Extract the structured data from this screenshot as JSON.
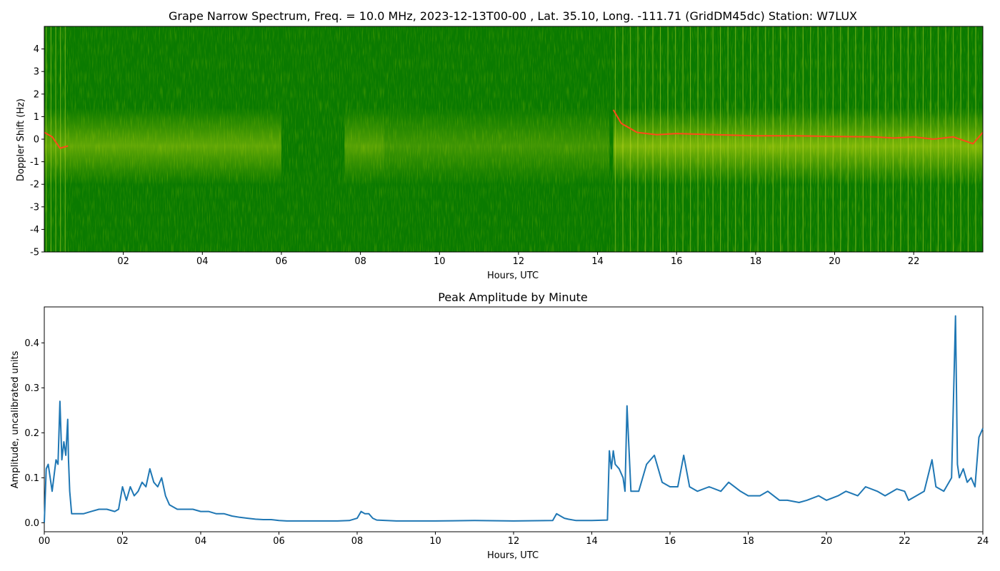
{
  "chart_data": [
    {
      "type": "heatmap",
      "title": "Grape Narrow Spectrum, Freq. = 10.0 MHz, 2023-12-13T00-00 , Lat.  35.10, Long. -111.71 (GridDM45dc) Station: W7LUX",
      "xlabel": "Hours, UTC",
      "ylabel": "Doppler Shift (Hz)",
      "xlim": [
        0,
        23.75
      ],
      "ylim": [
        -5,
        5
      ],
      "xticks": [
        "02",
        "04",
        "06",
        "08",
        "10",
        "12",
        "14",
        "16",
        "18",
        "20",
        "22"
      ],
      "xtick_values": [
        2,
        4,
        6,
        8,
        10,
        12,
        14,
        16,
        18,
        20,
        22
      ],
      "yticks": [
        "-5",
        "-4",
        "-3",
        "-2",
        "-1",
        "0",
        "1",
        "2",
        "3",
        "4"
      ],
      "ytick_values": [
        -5,
        -4,
        -3,
        -2,
        -1,
        0,
        1,
        2,
        3,
        4
      ],
      "colors": {
        "background": "#0a7a00",
        "mid": "#dde600",
        "high": "#ff4a1a"
      },
      "trace": {
        "x": [
          0,
          0.2,
          0.4,
          0.6,
          14.4,
          14.6,
          15.0,
          15.5,
          16.0,
          17.0,
          18.0,
          19.0,
          20.0,
          21.0,
          21.5,
          22.0,
          22.5,
          23.0,
          23.5,
          23.75
        ],
        "y": [
          0.3,
          0.1,
          -0.4,
          -0.3,
          1.3,
          0.7,
          0.3,
          0.2,
          0.25,
          0.2,
          0.15,
          0.15,
          0.12,
          0.1,
          0.05,
          0.1,
          0.0,
          0.1,
          -0.2,
          0.3
        ]
      }
    },
    {
      "type": "line",
      "title": "Peak Amplitude by Minute",
      "xlabel": "Hours, UTC",
      "ylabel": "Amplitude, uncalibrated units",
      "xlim": [
        0,
        24
      ],
      "ylim": [
        -0.02,
        0.48
      ],
      "xticks": [
        "00",
        "02",
        "04",
        "06",
        "08",
        "10",
        "12",
        "14",
        "16",
        "18",
        "20",
        "22",
        "24"
      ],
      "xtick_values": [
        0,
        2,
        4,
        6,
        8,
        10,
        12,
        14,
        16,
        18,
        20,
        22,
        24
      ],
      "yticks": [
        "0.0",
        "0.1",
        "0.2",
        "0.3",
        "0.4"
      ],
      "ytick_values": [
        0,
        0.1,
        0.2,
        0.3,
        0.4
      ],
      "line_color": "#1f77b4",
      "x": [
        0,
        0.05,
        0.1,
        0.2,
        0.3,
        0.35,
        0.4,
        0.45,
        0.5,
        0.55,
        0.6,
        0.62,
        0.65,
        0.7,
        0.8,
        1.0,
        1.2,
        1.4,
        1.6,
        1.8,
        1.9,
        2.0,
        2.1,
        2.2,
        2.3,
        2.4,
        2.5,
        2.6,
        2.7,
        2.8,
        2.9,
        3.0,
        3.1,
        3.2,
        3.4,
        3.6,
        3.8,
        4.0,
        4.2,
        4.4,
        4.6,
        4.8,
        5.0,
        5.2,
        5.4,
        5.6,
        5.8,
        6.0,
        6.2,
        6.5,
        7.0,
        7.5,
        7.8,
        8.0,
        8.1,
        8.2,
        8.3,
        8.4,
        8.5,
        9.0,
        10.0,
        11.0,
        12.0,
        13.0,
        13.1,
        13.2,
        13.3,
        13.4,
        13.6,
        14.0,
        14.4,
        14.45,
        14.5,
        14.55,
        14.6,
        14.7,
        14.8,
        14.85,
        14.9,
        15.0,
        15.2,
        15.4,
        15.6,
        15.8,
        16.0,
        16.2,
        16.35,
        16.5,
        16.7,
        17.0,
        17.3,
        17.5,
        17.8,
        18.0,
        18.3,
        18.5,
        18.8,
        19.0,
        19.3,
        19.5,
        19.8,
        20.0,
        20.3,
        20.5,
        20.8,
        21.0,
        21.3,
        21.5,
        21.8,
        22.0,
        22.1,
        22.3,
        22.5,
        22.7,
        22.8,
        23.0,
        23.2,
        23.3,
        23.35,
        23.4,
        23.5,
        23.6,
        23.7,
        23.8,
        23.9,
        24.0
      ],
      "values": [
        0.0,
        0.12,
        0.13,
        0.07,
        0.14,
        0.13,
        0.27,
        0.14,
        0.18,
        0.15,
        0.23,
        0.14,
        0.07,
        0.02,
        0.02,
        0.02,
        0.025,
        0.03,
        0.03,
        0.025,
        0.03,
        0.08,
        0.05,
        0.08,
        0.06,
        0.07,
        0.09,
        0.08,
        0.12,
        0.09,
        0.08,
        0.1,
        0.06,
        0.04,
        0.03,
        0.03,
        0.03,
        0.025,
        0.025,
        0.02,
        0.02,
        0.015,
        0.012,
        0.01,
        0.008,
        0.007,
        0.007,
        0.005,
        0.004,
        0.004,
        0.004,
        0.004,
        0.005,
        0.01,
        0.025,
        0.02,
        0.02,
        0.01,
        0.006,
        0.004,
        0.004,
        0.005,
        0.004,
        0.005,
        0.02,
        0.015,
        0.01,
        0.008,
        0.005,
        0.005,
        0.006,
        0.16,
        0.12,
        0.16,
        0.13,
        0.12,
        0.1,
        0.07,
        0.26,
        0.07,
        0.07,
        0.13,
        0.15,
        0.09,
        0.08,
        0.08,
        0.15,
        0.08,
        0.07,
        0.08,
        0.07,
        0.09,
        0.07,
        0.06,
        0.06,
        0.07,
        0.05,
        0.05,
        0.045,
        0.05,
        0.06,
        0.05,
        0.06,
        0.07,
        0.06,
        0.08,
        0.07,
        0.06,
        0.075,
        0.07,
        0.05,
        0.06,
        0.07,
        0.14,
        0.08,
        0.07,
        0.1,
        0.46,
        0.13,
        0.1,
        0.12,
        0.09,
        0.1,
        0.08,
        0.19,
        0.21
      ]
    }
  ]
}
